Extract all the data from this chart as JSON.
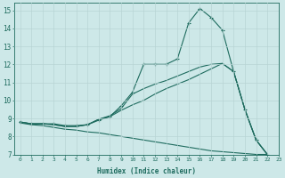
{
  "background_color": "#cde8e8",
  "grid_color": "#b8d4d4",
  "line_color": "#1e6b5e",
  "xlabel": "Humidex (Indice chaleur)",
  "xlim": [
    -0.5,
    23
  ],
  "ylim": [
    7,
    15.4
  ],
  "yticks": [
    7,
    8,
    9,
    10,
    11,
    12,
    13,
    14,
    15
  ],
  "xticks": [
    0,
    1,
    2,
    3,
    4,
    5,
    6,
    7,
    8,
    9,
    10,
    11,
    12,
    13,
    14,
    15,
    16,
    17,
    18,
    19,
    20,
    21,
    22,
    23
  ],
  "line1_x": [
    0,
    1,
    2,
    3,
    4,
    5,
    6,
    7,
    8,
    9,
    10,
    11,
    12,
    13,
    14,
    15,
    16,
    17,
    18,
    19,
    20,
    21,
    22
  ],
  "line1_y": [
    8.8,
    8.7,
    8.7,
    8.7,
    8.6,
    8.6,
    8.65,
    8.9,
    9.1,
    9.7,
    10.45,
    12.0,
    12.0,
    12.0,
    12.3,
    14.3,
    15.1,
    14.6,
    13.9,
    11.6,
    9.5,
    7.8,
    7.0
  ],
  "line2_x": [
    0,
    1,
    2,
    3,
    4,
    5,
    6,
    7,
    8,
    9,
    10,
    11,
    12,
    13,
    14,
    15,
    16,
    17,
    18,
    19,
    20,
    21,
    22
  ],
  "line2_y": [
    8.8,
    8.7,
    8.7,
    8.65,
    8.55,
    8.55,
    8.65,
    8.95,
    9.15,
    9.55,
    10.35,
    10.65,
    10.9,
    11.1,
    11.35,
    11.6,
    11.85,
    12.0,
    12.05,
    11.6,
    9.5,
    7.8,
    7.0
  ],
  "line3_x": [
    0,
    1,
    2,
    3,
    4,
    5,
    6,
    7,
    8,
    9,
    10,
    11,
    12,
    13,
    14,
    15,
    16,
    17,
    18,
    19,
    20,
    21,
    22
  ],
  "line3_y": [
    8.8,
    8.7,
    8.7,
    8.65,
    8.55,
    8.55,
    8.65,
    8.95,
    9.1,
    9.45,
    9.75,
    10.0,
    10.35,
    10.65,
    10.9,
    11.15,
    11.45,
    11.75,
    12.05,
    11.6,
    9.5,
    7.8,
    7.0
  ],
  "line4_x": [
    0,
    1,
    2,
    3,
    4,
    5,
    6,
    7,
    8,
    9,
    10,
    11,
    12,
    13,
    14,
    15,
    16,
    17,
    18,
    19,
    20,
    21,
    22
  ],
  "line4_y": [
    8.75,
    8.65,
    8.6,
    8.5,
    8.4,
    8.35,
    8.25,
    8.2,
    8.1,
    8.0,
    7.9,
    7.8,
    7.7,
    7.6,
    7.5,
    7.4,
    7.3,
    7.2,
    7.15,
    7.1,
    7.05,
    7.0,
    7.0
  ]
}
